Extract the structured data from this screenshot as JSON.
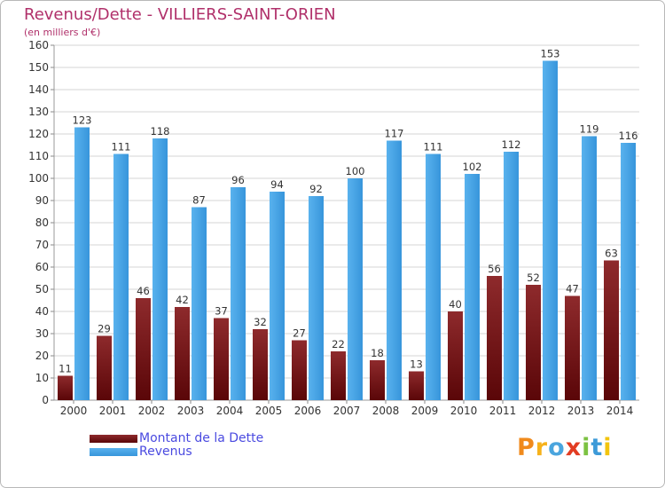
{
  "chart_data": {
    "type": "bar",
    "title": "Revenus/Dette - VILLIERS-SAINT-ORIEN",
    "subtitle": "(en milliers d'€)",
    "xlabel": "",
    "ylabel": "",
    "ylim": [
      0,
      160
    ],
    "ytick_step": 10,
    "grid": true,
    "categories": [
      "2000",
      "2001",
      "2002",
      "2003",
      "2004",
      "2005",
      "2006",
      "2007",
      "2008",
      "2009",
      "2010",
      "2011",
      "2012",
      "2013",
      "2014"
    ],
    "series": [
      {
        "name": "Montant de la Dette",
        "color": "#7a1214",
        "values": [
          11,
          29,
          46,
          42,
          37,
          32,
          27,
          22,
          18,
          13,
          40,
          56,
          52,
          47,
          63
        ]
      },
      {
        "name": "Revenus",
        "color": "#3fa3e6",
        "values": [
          123,
          111,
          118,
          87,
          96,
          94,
          92,
          100,
          117,
          111,
          102,
          112,
          153,
          119,
          116
        ]
      }
    ],
    "legend": [
      "Montant de la Dette",
      "Revenus"
    ],
    "legend_position": "bottom-left"
  },
  "logo": {
    "letters": [
      "P",
      "r",
      "o",
      "x",
      "i",
      "t",
      "i"
    ],
    "colors": [
      "#f08a1c",
      "#f6b21b",
      "#4aa5de",
      "#e23c22",
      "#7cc242",
      "#3d9ad8",
      "#f2c40e"
    ]
  }
}
